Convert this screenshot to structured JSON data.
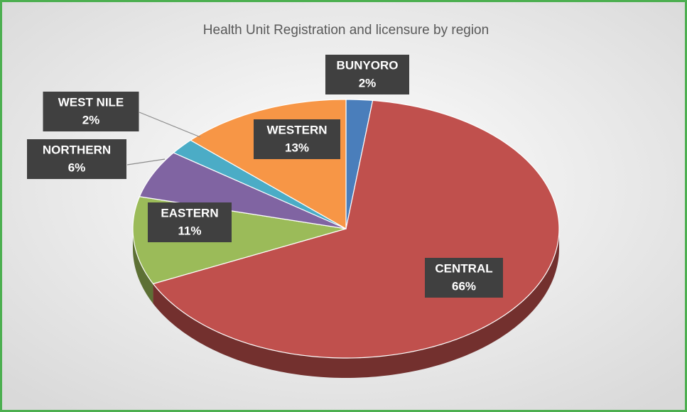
{
  "chart_data": {
    "type": "pie",
    "title": "Health Unit Registration and licensure by region",
    "categories": [
      "BUNYORO",
      "CENTRAL",
      "EASTERN",
      "NORTHERN",
      "WEST NILE",
      "WESTERN"
    ],
    "values": [
      2,
      66,
      11,
      6,
      2,
      13
    ],
    "value_labels": [
      "2%",
      "66%",
      "11%",
      "6%",
      "2%",
      "13%"
    ],
    "colors": [
      "#4a7ebb",
      "#c0504d",
      "#9bbb59",
      "#8064a2",
      "#4bacc6",
      "#f79646"
    ]
  }
}
